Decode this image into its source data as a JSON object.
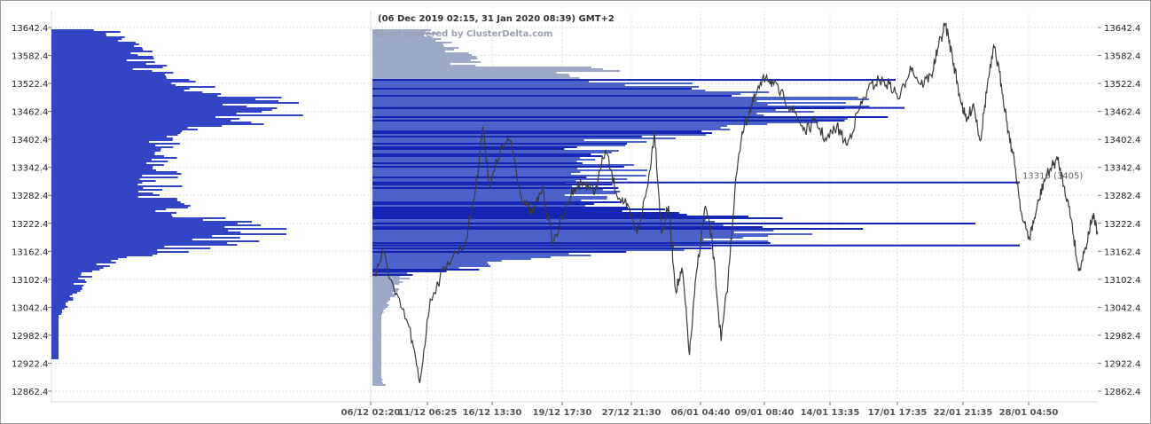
{
  "chart_data": {
    "type": "line",
    "header": "(06 Dec 2019 02:15, 31 Jan 2020 08:39) GMT+2",
    "watermark": "Chart powered by ClusterDelta.com",
    "y_ticks": [
      "13642.4",
      "13582.4",
      "13522.4",
      "13462.4",
      "13402.4",
      "13342.4",
      "13282.4",
      "13222.4",
      "13162.4",
      "13102.4",
      "13042.4",
      "12982.4",
      "12922.4",
      "12862.4"
    ],
    "ylim": [
      12850,
      13670
    ],
    "x_ticks": [
      "06/12 02:20",
      "11/12 06:25",
      "16/12 13:30",
      "19/12 17:30",
      "27/12 21:30",
      "06/01 04:40",
      "09/01 08:40",
      "14/01 13:35",
      "17/01 17:35",
      "22/01 21:35",
      "28/01 04:50"
    ],
    "poc_label": "13310 (3405)",
    "poc_price": 13310,
    "price_series": [
      {
        "x": 0,
        "y": 13110
      },
      {
        "x": 0.5,
        "y": 13160
      },
      {
        "x": 1.2,
        "y": 13070
      },
      {
        "x": 2.0,
        "y": 13000
      },
      {
        "x": 2.6,
        "y": 12880
      },
      {
        "x": 3.2,
        "y": 13060
      },
      {
        "x": 4.2,
        "y": 13140
      },
      {
        "x": 5.2,
        "y": 13180
      },
      {
        "x": 5.8,
        "y": 13300
      },
      {
        "x": 6.2,
        "y": 13430
      },
      {
        "x": 6.6,
        "y": 13300
      },
      {
        "x": 7.2,
        "y": 13380
      },
      {
        "x": 7.8,
        "y": 13400
      },
      {
        "x": 8.4,
        "y": 13280
      },
      {
        "x": 9.0,
        "y": 13240
      },
      {
        "x": 9.6,
        "y": 13300
      },
      {
        "x": 10.2,
        "y": 13180
      },
      {
        "x": 10.8,
        "y": 13240
      },
      {
        "x": 11.4,
        "y": 13300
      },
      {
        "x": 12.0,
        "y": 13310
      },
      {
        "x": 12.6,
        "y": 13290
      },
      {
        "x": 13.2,
        "y": 13380
      },
      {
        "x": 13.8,
        "y": 13290
      },
      {
        "x": 14.4,
        "y": 13260
      },
      {
        "x": 15.0,
        "y": 13200
      },
      {
        "x": 15.6,
        "y": 13300
      },
      {
        "x": 16.0,
        "y": 13420
      },
      {
        "x": 16.4,
        "y": 13200
      },
      {
        "x": 16.8,
        "y": 13260
      },
      {
        "x": 17.2,
        "y": 13080
      },
      {
        "x": 17.6,
        "y": 13120
      },
      {
        "x": 18.0,
        "y": 12940
      },
      {
        "x": 18.4,
        "y": 13120
      },
      {
        "x": 18.9,
        "y": 13260
      },
      {
        "x": 19.3,
        "y": 13180
      },
      {
        "x": 19.8,
        "y": 12970
      },
      {
        "x": 20.2,
        "y": 13100
      },
      {
        "x": 20.6,
        "y": 13300
      },
      {
        "x": 21.0,
        "y": 13420
      },
      {
        "x": 21.4,
        "y": 13460
      },
      {
        "x": 21.8,
        "y": 13500
      },
      {
        "x": 22.4,
        "y": 13540
      },
      {
        "x": 22.8,
        "y": 13520
      },
      {
        "x": 23.4,
        "y": 13490
      },
      {
        "x": 24.0,
        "y": 13460
      },
      {
        "x": 24.6,
        "y": 13420
      },
      {
        "x": 25.2,
        "y": 13440
      },
      {
        "x": 25.8,
        "y": 13400
      },
      {
        "x": 26.4,
        "y": 13430
      },
      {
        "x": 27.0,
        "y": 13390
      },
      {
        "x": 27.6,
        "y": 13460
      },
      {
        "x": 28.2,
        "y": 13510
      },
      {
        "x": 28.8,
        "y": 13530
      },
      {
        "x": 29.4,
        "y": 13520
      },
      {
        "x": 30.0,
        "y": 13490
      },
      {
        "x": 30.6,
        "y": 13560
      },
      {
        "x": 31.2,
        "y": 13520
      },
      {
        "x": 31.8,
        "y": 13540
      },
      {
        "x": 32.2,
        "y": 13600
      },
      {
        "x": 32.6,
        "y": 13650
      },
      {
        "x": 33.0,
        "y": 13580
      },
      {
        "x": 33.4,
        "y": 13500
      },
      {
        "x": 33.8,
        "y": 13440
      },
      {
        "x": 34.2,
        "y": 13480
      },
      {
        "x": 34.6,
        "y": 13400
      },
      {
        "x": 35.0,
        "y": 13520
      },
      {
        "x": 35.4,
        "y": 13600
      },
      {
        "x": 35.8,
        "y": 13520
      },
      {
        "x": 36.2,
        "y": 13420
      },
      {
        "x": 36.6,
        "y": 13340
      },
      {
        "x": 37.0,
        "y": 13230
      },
      {
        "x": 37.4,
        "y": 13190
      },
      {
        "x": 37.8,
        "y": 13250
      },
      {
        "x": 38.2,
        "y": 13310
      },
      {
        "x": 38.6,
        "y": 13340
      },
      {
        "x": 39.0,
        "y": 13360
      },
      {
        "x": 39.4,
        "y": 13300
      },
      {
        "x": 39.8,
        "y": 13230
      },
      {
        "x": 40.2,
        "y": 13120
      },
      {
        "x": 40.6,
        "y": 13170
      },
      {
        "x": 41.0,
        "y": 13240
      },
      {
        "x": 41.3,
        "y": 13200
      }
    ],
    "x_max": 41.3,
    "profile_colors": {
      "left": "#3344c4",
      "dark": "#1626b4",
      "mid": "#4c62c8",
      "light": "#9caac8"
    }
  }
}
